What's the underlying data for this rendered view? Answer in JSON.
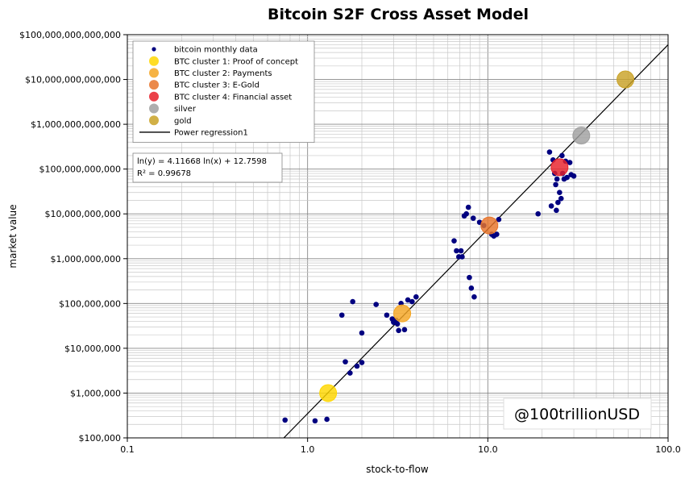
{
  "chart_data": {
    "type": "scatter",
    "title": "Bitcoin S2F Cross Asset Model",
    "xlabel": "stock-to-flow",
    "ylabel": "market value",
    "x_scale": "log",
    "y_scale": "log",
    "xlim": [
      0.1,
      100
    ],
    "ylim": [
      100000,
      100000000000000
    ],
    "grid": true,
    "x_ticks": [
      "0.1",
      "1.0",
      "10.0",
      "100.0"
    ],
    "y_ticks": [
      "$100,000",
      "$1,000,000",
      "$10,000,000",
      "$100,000,000",
      "$1,000,000,000",
      "$10,000,000,000",
      "$100,000,000,000",
      "$1,000,000,000,000",
      "$10,000,000,000,000",
      "$100,000,000,000,000"
    ],
    "legend_position": "top-left",
    "legend": [
      {
        "label": "bitcoin monthly data",
        "color": "#000080",
        "marker": "small-dot"
      },
      {
        "label": "BTC cluster 1: Proof of concept",
        "color": "#ffd700",
        "marker": "circle"
      },
      {
        "label": "BTC cluster 2: Payments",
        "color": "#f5a623",
        "marker": "circle"
      },
      {
        "label": "BTC cluster 3: E-Gold",
        "color": "#e8742a",
        "marker": "circle"
      },
      {
        "label": "BTC cluster 4: Financial asset",
        "color": "#e8202a",
        "marker": "circle"
      },
      {
        "label": "silver",
        "color": "#a0a0a0",
        "marker": "circle"
      },
      {
        "label": "gold",
        "color": "#c9a227",
        "marker": "circle"
      },
      {
        "label": "Power regression1",
        "color": "#000000",
        "marker": "line"
      }
    ],
    "annotation_lines": [
      "ln(y) = 4.11668 ln(x) + 12.7598",
      "R² = 0.99678"
    ],
    "watermark": "@100trillionUSD",
    "regression": {
      "a": 4.11668,
      "b": 12.7598
    },
    "series": [
      {
        "name": "bitcoin monthly data",
        "color": "#000080",
        "points": [
          [
            0.75,
            250000
          ],
          [
            1.1,
            240000
          ],
          [
            1.28,
            260000
          ],
          [
            1.55,
            55000000
          ],
          [
            1.62,
            5000000
          ],
          [
            1.72,
            2800000
          ],
          [
            1.78,
            110000000
          ],
          [
            1.88,
            4000000
          ],
          [
            2.0,
            22000000
          ],
          [
            2.0,
            4800000
          ],
          [
            2.4,
            95000000
          ],
          [
            2.75,
            55000000
          ],
          [
            2.95,
            45000000
          ],
          [
            3.0,
            38000000
          ],
          [
            3.1,
            42000000
          ],
          [
            3.15,
            35000000
          ],
          [
            3.2,
            25000000
          ],
          [
            3.3,
            100000000
          ],
          [
            3.45,
            26000000
          ],
          [
            3.6,
            120000000
          ],
          [
            3.8,
            110000000
          ],
          [
            4.0,
            140000000
          ],
          [
            6.5,
            2500000000
          ],
          [
            6.7,
            1500000000
          ],
          [
            6.9,
            1100000000
          ],
          [
            7.1,
            1500000000
          ],
          [
            7.2,
            1100000000
          ],
          [
            7.4,
            9000000000
          ],
          [
            7.6,
            10000000000
          ],
          [
            7.8,
            14000000000
          ],
          [
            7.9,
            380000000
          ],
          [
            8.1,
            220000000
          ],
          [
            8.3,
            8000000000
          ],
          [
            8.4,
            140000000
          ],
          [
            9.0,
            6500000000
          ],
          [
            9.5,
            5500000000
          ],
          [
            10.5,
            3500000000
          ],
          [
            10.8,
            3200000000
          ],
          [
            11.2,
            3500000000
          ],
          [
            11.5,
            7500000000
          ],
          [
            19.0,
            10000000000
          ],
          [
            22.0,
            240000000000
          ],
          [
            22.5,
            15000000000
          ],
          [
            23.0,
            160000000000
          ],
          [
            23.5,
            80000000000
          ],
          [
            23.8,
            45000000000
          ],
          [
            24.0,
            12000000000
          ],
          [
            24.2,
            60000000000
          ],
          [
            24.5,
            18000000000
          ],
          [
            25.0,
            30000000000
          ],
          [
            25.5,
            22000000000
          ],
          [
            25.8,
            200000000000
          ],
          [
            26.0,
            80000000000
          ],
          [
            26.5,
            60000000000
          ],
          [
            27.0,
            150000000000
          ],
          [
            27.5,
            65000000000
          ],
          [
            28.5,
            140000000000
          ],
          [
            29.0,
            75000000000
          ],
          [
            30.0,
            70000000000
          ]
        ]
      },
      {
        "name": "BTC cluster 1: Proof of concept",
        "color": "#ffd700",
        "points": [
          [
            1.3,
            1000000
          ]
        ]
      },
      {
        "name": "BTC cluster 2: Payments",
        "color": "#f5a623",
        "points": [
          [
            3.35,
            60000000
          ]
        ]
      },
      {
        "name": "BTC cluster 3: E-Gold",
        "color": "#e8742a",
        "points": [
          [
            10.2,
            5500000000
          ]
        ]
      },
      {
        "name": "BTC cluster 4: Financial asset",
        "color": "#e8202a",
        "points": [
          [
            25.0,
            110000000000
          ]
        ]
      },
      {
        "name": "silver",
        "color": "#a0a0a0",
        "points": [
          [
            33.0,
            560000000000
          ]
        ]
      },
      {
        "name": "gold",
        "color": "#c9a227",
        "points": [
          [
            58.0,
            10000000000000
          ]
        ]
      }
    ]
  }
}
